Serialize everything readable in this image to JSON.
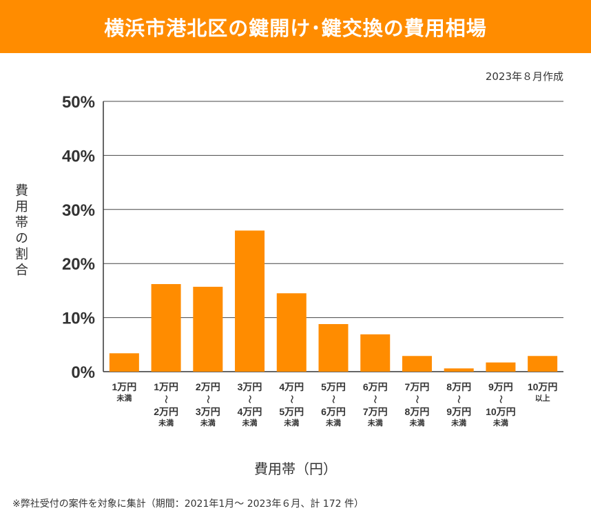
{
  "header": {
    "title": "横浜市港北区の鍵開け･鍵交換の費用相場"
  },
  "date_note": "2023年８月作成",
  "footnote": "※弊社受付の案件を対象に集計（期間：2021年1月～ 2023年６月、計 172 件）",
  "colors": {
    "accent": "#ff8c00",
    "bar": "#ff8c00",
    "grid": "#444444"
  },
  "chart_data": {
    "type": "bar",
    "xlabel": "費用帯（円）",
    "ylabel": "費用帯の割合",
    "ylim": [
      0,
      50
    ],
    "yticks": [
      "0%",
      "10%",
      "20%",
      "30%",
      "40%",
      "50%"
    ],
    "ytick_values": [
      0,
      10,
      20,
      30,
      40,
      50
    ],
    "grid": true,
    "categories": [
      {
        "top": "1万円",
        "sep": "",
        "bottom": "",
        "suffix": "未満"
      },
      {
        "top": "1万円",
        "sep": "～",
        "bottom": "2万円",
        "suffix": "未満"
      },
      {
        "top": "2万円",
        "sep": "～",
        "bottom": "3万円",
        "suffix": "未満"
      },
      {
        "top": "3万円",
        "sep": "～",
        "bottom": "4万円",
        "suffix": "未満"
      },
      {
        "top": "4万円",
        "sep": "～",
        "bottom": "5万円",
        "suffix": "未満"
      },
      {
        "top": "5万円",
        "sep": "～",
        "bottom": "6万円",
        "suffix": "未満"
      },
      {
        "top": "6万円",
        "sep": "～",
        "bottom": "7万円",
        "suffix": "未満"
      },
      {
        "top": "7万円",
        "sep": "～",
        "bottom": "8万円",
        "suffix": "未満"
      },
      {
        "top": "8万円",
        "sep": "～",
        "bottom": "9万円",
        "suffix": "未満"
      },
      {
        "top": "9万円",
        "sep": "～",
        "bottom": "10万円",
        "suffix": "未満"
      },
      {
        "top": "10万円",
        "sep": "",
        "bottom": "",
        "suffix": "以上"
      }
    ],
    "values": [
      3.4,
      16.2,
      15.7,
      26.1,
      14.5,
      8.8,
      6.9,
      2.9,
      0.6,
      1.7,
      2.9
    ]
  }
}
